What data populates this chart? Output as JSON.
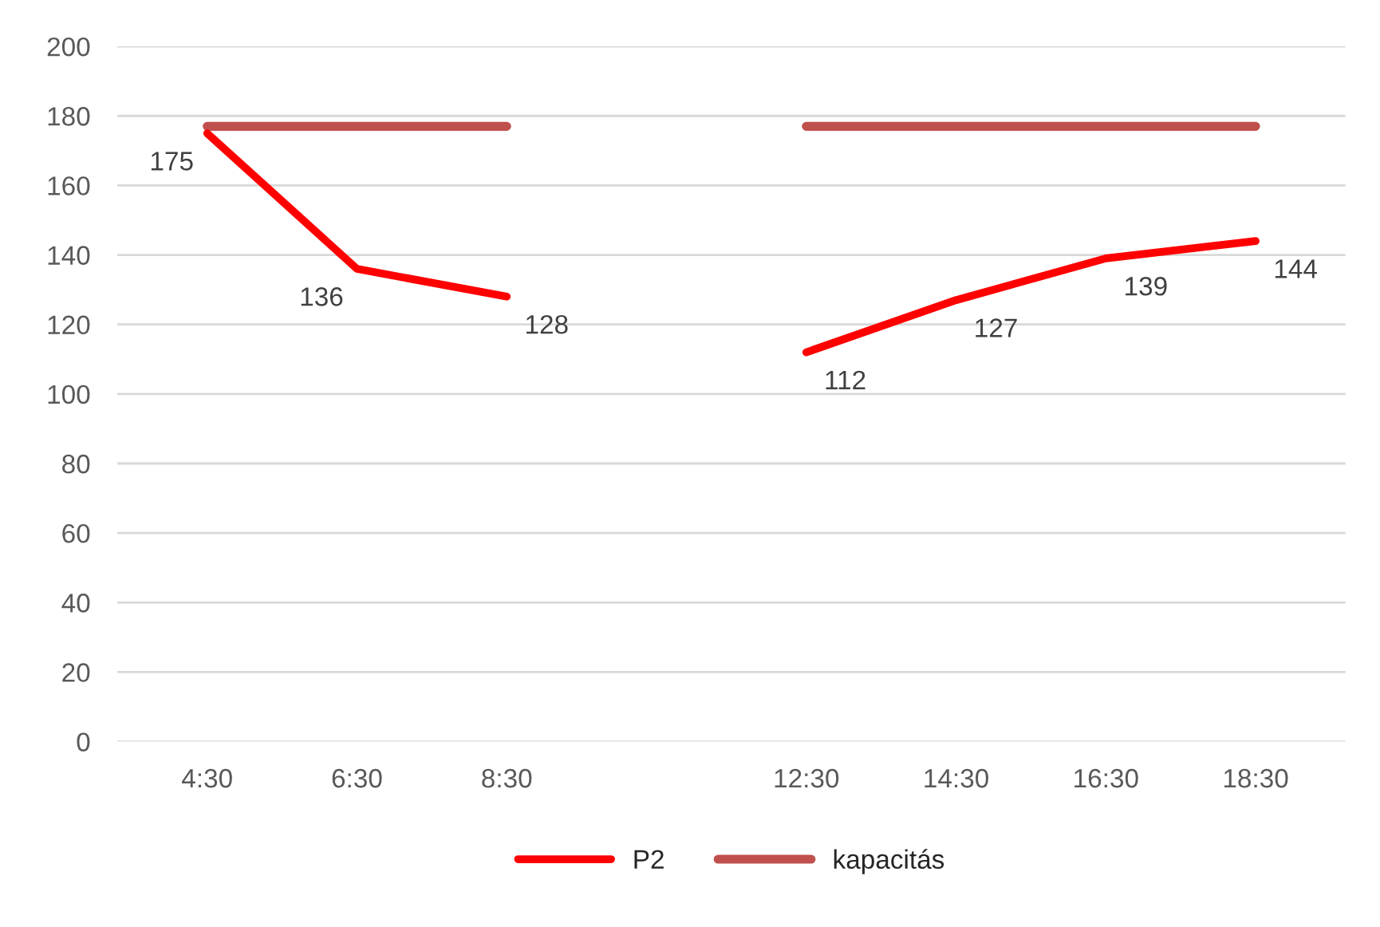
{
  "chart_data": {
    "type": "line",
    "categories": [
      "4:30",
      "6:30",
      "8:30",
      null,
      "12:30",
      "14:30",
      "16:30",
      "18:30"
    ],
    "series": [
      {
        "name": "P2",
        "color": "#ff0000",
        "values": [
          175,
          136,
          128,
          null,
          112,
          127,
          139,
          144
        ],
        "value_labels": [
          "175",
          "136",
          "128",
          null,
          "112",
          "127",
          "139",
          "144"
        ]
      },
      {
        "name": "kapacitás",
        "color": "#c0504d",
        "values": [
          177,
          177,
          177,
          null,
          177,
          177,
          177,
          177
        ]
      }
    ],
    "ylim": [
      0,
      200
    ],
    "yticks": [
      0,
      20,
      40,
      60,
      80,
      100,
      120,
      140,
      160,
      180,
      200
    ],
    "grid": "y",
    "legend": "bottom",
    "marker": "none",
    "line_style": "solid"
  }
}
